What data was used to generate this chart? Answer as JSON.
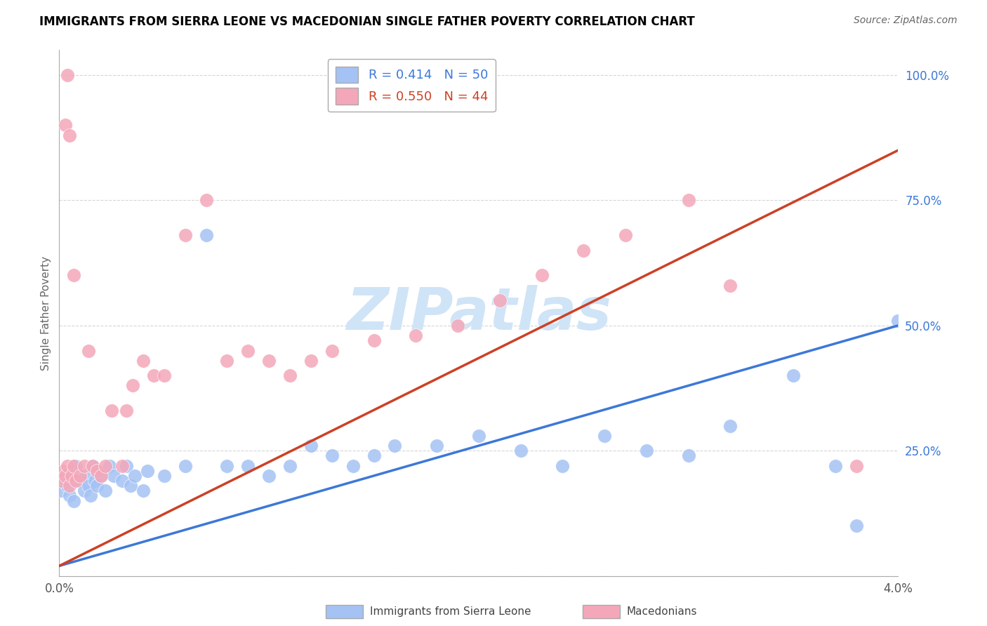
{
  "title": "IMMIGRANTS FROM SIERRA LEONE VS MACEDONIAN SINGLE FATHER POVERTY CORRELATION CHART",
  "source": "Source: ZipAtlas.com",
  "ylabel": "Single Father Poverty",
  "xlim": [
    0.0,
    0.04
  ],
  "ylim": [
    0.0,
    1.05
  ],
  "xticks": [
    0.0,
    0.004,
    0.008,
    0.012,
    0.016,
    0.02,
    0.024,
    0.028,
    0.032,
    0.036,
    0.04
  ],
  "xtick_labels": [
    "0.0%",
    "",
    "",
    "",
    "",
    "",
    "",
    "",
    "",
    "",
    "4.0%"
  ],
  "ytick_positions": [
    0.0,
    0.25,
    0.5,
    0.75,
    1.0
  ],
  "ytick_labels": [
    "",
    "25.0%",
    "50.0%",
    "75.0%",
    "100.0%"
  ],
  "blue_R": 0.414,
  "blue_N": 50,
  "pink_R": 0.55,
  "pink_N": 44,
  "blue_color": "#a4c2f4",
  "pink_color": "#f4a7b9",
  "blue_line_color": "#3c78d8",
  "pink_line_color": "#cc4125",
  "watermark_color": "#d0e4f7",
  "grid_color": "#cccccc",
  "blue_line_x0": 0.0,
  "blue_line_y0": 0.02,
  "blue_line_x1": 0.04,
  "blue_line_y1": 0.5,
  "pink_line_x0": 0.0,
  "pink_line_y0": 0.02,
  "pink_line_x1": 0.04,
  "pink_line_y1": 0.85,
  "blue_scatter_x": [
    0.0001,
    0.0002,
    0.0003,
    0.0004,
    0.0005,
    0.0006,
    0.0007,
    0.0008,
    0.001,
    0.0012,
    0.0013,
    0.0014,
    0.0015,
    0.0016,
    0.0017,
    0.0018,
    0.002,
    0.0022,
    0.0024,
    0.0026,
    0.003,
    0.0032,
    0.0034,
    0.0036,
    0.004,
    0.0042,
    0.005,
    0.006,
    0.007,
    0.008,
    0.009,
    0.01,
    0.011,
    0.012,
    0.013,
    0.014,
    0.015,
    0.016,
    0.018,
    0.02,
    0.022,
    0.024,
    0.026,
    0.028,
    0.03,
    0.032,
    0.035,
    0.037,
    0.038,
    0.04
  ],
  "blue_scatter_y": [
    0.17,
    0.2,
    0.19,
    0.18,
    0.16,
    0.21,
    0.15,
    0.22,
    0.19,
    0.17,
    0.2,
    0.18,
    0.16,
    0.22,
    0.19,
    0.18,
    0.2,
    0.17,
    0.22,
    0.2,
    0.19,
    0.22,
    0.18,
    0.2,
    0.17,
    0.21,
    0.2,
    0.22,
    0.68,
    0.22,
    0.22,
    0.2,
    0.22,
    0.26,
    0.24,
    0.22,
    0.24,
    0.26,
    0.26,
    0.28,
    0.25,
    0.22,
    0.28,
    0.25,
    0.24,
    0.3,
    0.4,
    0.22,
    0.1,
    0.51
  ],
  "pink_scatter_x": [
    0.0001,
    0.0002,
    0.0003,
    0.0004,
    0.0005,
    0.0006,
    0.0007,
    0.0008,
    0.001,
    0.0012,
    0.0014,
    0.0016,
    0.0018,
    0.002,
    0.0022,
    0.0025,
    0.003,
    0.0032,
    0.0035,
    0.004,
    0.0045,
    0.005,
    0.006,
    0.007,
    0.008,
    0.009,
    0.01,
    0.011,
    0.012,
    0.013,
    0.015,
    0.017,
    0.019,
    0.021,
    0.023,
    0.025,
    0.027,
    0.03,
    0.032,
    0.038,
    0.0003,
    0.0004,
    0.0005,
    0.0007
  ],
  "pink_scatter_y": [
    0.19,
    0.21,
    0.2,
    0.22,
    0.18,
    0.2,
    0.22,
    0.19,
    0.2,
    0.22,
    0.45,
    0.22,
    0.21,
    0.2,
    0.22,
    0.33,
    0.22,
    0.33,
    0.38,
    0.43,
    0.4,
    0.4,
    0.68,
    0.75,
    0.43,
    0.45,
    0.43,
    0.4,
    0.43,
    0.45,
    0.47,
    0.48,
    0.5,
    0.55,
    0.6,
    0.65,
    0.68,
    0.75,
    0.58,
    0.22,
    0.9,
    1.0,
    0.88,
    0.6
  ]
}
